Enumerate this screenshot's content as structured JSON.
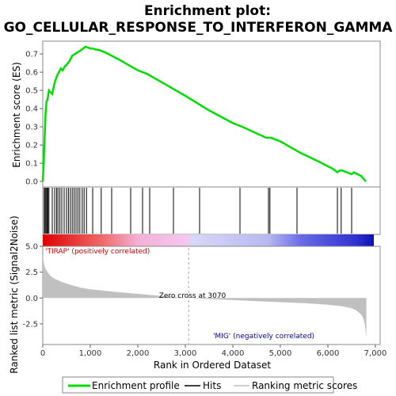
{
  "title_line1": "Enrichment plot:",
  "title_line2": "GO_CELLULAR_RESPONSE_TO_INTERFERON_GAMMA",
  "colors": {
    "es_line": "#00dd00",
    "hit": "#000000",
    "metric_fill": "#c0c0c0",
    "pos_label": "#cc0000",
    "neg_label": "#0000aa",
    "zero_line": "#aaaaaa",
    "plot_border": "#888888"
  },
  "legend": {
    "enrichment": "Enrichment profile",
    "hits": "Hits",
    "ranking": "Ranking metric scores"
  },
  "chart_data": [
    {
      "type": "line",
      "name": "Enrichment profile",
      "ylabel": "Enrichment score (ES)",
      "yticks": [
        0.0,
        0.1,
        0.2,
        0.3,
        0.4,
        0.5,
        0.6,
        0.7
      ],
      "ylim": [
        -0.03,
        0.77
      ],
      "xlim": [
        0,
        7100
      ],
      "x": [
        0,
        20,
        40,
        60,
        80,
        100,
        130,
        160,
        200,
        230,
        260,
        300,
        340,
        380,
        420,
        460,
        500,
        560,
        620,
        680,
        740,
        800,
        850,
        900,
        950,
        1000,
        1050,
        1100,
        1200,
        1300,
        1450,
        1600,
        1800,
        2000,
        2200,
        2600,
        3000,
        3500,
        4000,
        4200,
        4700,
        4800,
        5000,
        5400,
        5800,
        6100,
        6200,
        6250,
        6300,
        6400,
        6500,
        6550,
        6700,
        6800
      ],
      "y": [
        0.0,
        0.1,
        0.25,
        0.38,
        0.44,
        0.45,
        0.5,
        0.49,
        0.48,
        0.52,
        0.55,
        0.58,
        0.6,
        0.62,
        0.61,
        0.63,
        0.64,
        0.66,
        0.69,
        0.7,
        0.71,
        0.72,
        0.73,
        0.74,
        0.735,
        0.73,
        0.73,
        0.725,
        0.72,
        0.71,
        0.69,
        0.67,
        0.64,
        0.61,
        0.59,
        0.53,
        0.47,
        0.39,
        0.32,
        0.3,
        0.24,
        0.24,
        0.22,
        0.16,
        0.11,
        0.07,
        0.05,
        0.06,
        0.06,
        0.05,
        0.04,
        0.05,
        0.03,
        0.0
      ]
    },
    {
      "type": "hits",
      "name": "Hits",
      "x": [
        30,
        50,
        70,
        90,
        110,
        130,
        200,
        250,
        290,
        320,
        360,
        400,
        450,
        500,
        540,
        580,
        620,
        660,
        700,
        740,
        780,
        830,
        870,
        920,
        1050,
        1230,
        1450,
        1850,
        2100,
        2250,
        2750,
        3300,
        4150,
        4750,
        4780,
        5350,
        6200,
        6280,
        6500
      ]
    },
    {
      "type": "area",
      "name": "Ranking metric scores",
      "xlabel": "Rank in Ordered Dataset",
      "ylabel": "Ranked list metric (Signal2Noise)",
      "xticks": [
        0,
        1000,
        2000,
        3000,
        4000,
        5000,
        6000,
        7000
      ],
      "xtick_labels": [
        "0",
        "1,000",
        "2,000",
        "3,000",
        "4,000",
        "5,000",
        "6,000",
        "7,000"
      ],
      "yticks": [
        5.0,
        2.5,
        0.0,
        -2.5
      ],
      "ytick_labels": [
        "5.0",
        "2.5",
        "0.0",
        "-2.5"
      ],
      "ylim": [
        -4.5,
        5.0
      ],
      "x": [
        0,
        10,
        30,
        60,
        100,
        150,
        200,
        300,
        400,
        600,
        800,
        1000,
        1500,
        2000,
        2500,
        3070,
        3500,
        4000,
        4500,
        5000,
        5500,
        6000,
        6300,
        6500,
        6600,
        6700,
        6750,
        6780,
        6800,
        6810
      ],
      "y": [
        4.2,
        3.8,
        3.2,
        2.8,
        2.5,
        2.2,
        2.0,
        1.75,
        1.55,
        1.25,
        1.0,
        0.85,
        0.6,
        0.4,
        0.2,
        0.0,
        -0.1,
        -0.2,
        -0.3,
        -0.4,
        -0.5,
        -0.65,
        -0.8,
        -1.0,
        -1.2,
        -1.6,
        -2.0,
        -2.6,
        -3.4,
        -3.9
      ],
      "zero_cross_label": "Zero cross at 3070",
      "zero_cross_x": 3070,
      "pos_label": "'TIRAP' (positively correlated)",
      "neg_label": "'MIG' (negatively correlated)"
    }
  ]
}
